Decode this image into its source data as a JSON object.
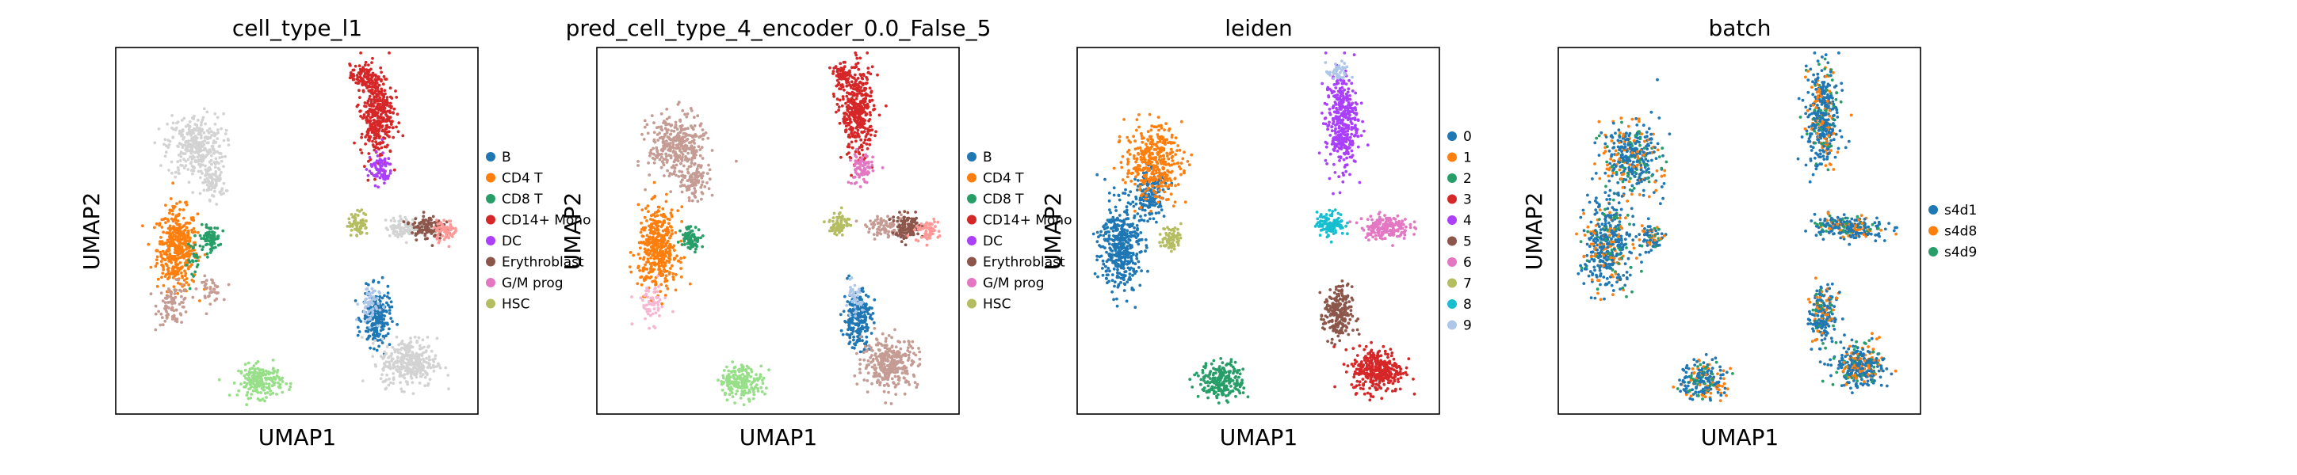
{
  "palettes": {
    "cell_type": {
      "B": "#1f77b4",
      "CD4 T": "#ff7f0e",
      "CD8 T": "#279e68",
      "CD14+ Mono": "#d62728",
      "DC": "#aa40fc",
      "Erythroblast": "#8c564b",
      "G/M prog": "#e377c2",
      "HSC": "#b5bd61",
      "unshown_a": "#d3d3d3",
      "unshown_b": "#c49c94",
      "unshown_c": "#98df8a",
      "unshown_d": "#aec7e8",
      "unshown_e": "#f7b6d2",
      "unshown_f": "#ff9896"
    },
    "leiden": [
      "#1f77b4",
      "#ff7f0e",
      "#279e68",
      "#d62728",
      "#aa40fc",
      "#8c564b",
      "#e377c2",
      "#b5bd61",
      "#17becf",
      "#aec7e8"
    ],
    "batch": {
      "s4d1": "#1f77b4",
      "s4d8": "#ff7f0e",
      "s4d9": "#279e68"
    }
  },
  "chart_data": [
    {
      "type": "scatter",
      "title": "cell_type_l1",
      "xlabel": "UMAP1",
      "ylabel": "UMAP2",
      "legend_placement": "right",
      "legend": [
        "B",
        "CD4 T",
        "CD8 T",
        "CD14+ Mono",
        "DC",
        "Erythroblast",
        "G/M prog",
        "HSC"
      ],
      "legend_colors": [
        "#1f77b4",
        "#ff7f0e",
        "#279e68",
        "#d62728",
        "#aa40fc",
        "#8c564b",
        "#e377c2",
        "#b5bd61"
      ],
      "clusters": [
        {
          "x": 0.17,
          "y": 0.45,
          "rx": 0.05,
          "ry": 0.1,
          "color": "#ff7f0e",
          "n": 420
        },
        {
          "x": 0.16,
          "y": 0.3,
          "rx": 0.04,
          "ry": 0.05,
          "color": "#c49c94",
          "n": 90
        },
        {
          "x": 0.26,
          "y": 0.34,
          "rx": 0.03,
          "ry": 0.03,
          "color": "#c49c94",
          "n": 40
        },
        {
          "x": 0.22,
          "y": 0.73,
          "rx": 0.07,
          "ry": 0.08,
          "color": "#d3d3d3",
          "n": 320
        },
        {
          "x": 0.27,
          "y": 0.63,
          "rx": 0.03,
          "ry": 0.04,
          "color": "#d3d3d3",
          "n": 80
        },
        {
          "x": 0.26,
          "y": 0.48,
          "rx": 0.025,
          "ry": 0.03,
          "color": "#279e68",
          "n": 80
        },
        {
          "x": 0.22,
          "y": 0.42,
          "rx": 0.02,
          "ry": 0.05,
          "color": "#279e68",
          "n": 25
        },
        {
          "x": 0.4,
          "y": 0.09,
          "rx": 0.055,
          "ry": 0.04,
          "color": "#98df8a",
          "n": 200
        },
        {
          "x": 0.72,
          "y": 0.26,
          "rx": 0.035,
          "ry": 0.07,
          "color": "#1f77b4",
          "n": 200
        },
        {
          "x": 0.7,
          "y": 0.3,
          "rx": 0.025,
          "ry": 0.05,
          "color": "#aec7e8",
          "n": 60
        },
        {
          "x": 0.81,
          "y": 0.14,
          "rx": 0.07,
          "ry": 0.06,
          "color": "#d3d3d3",
          "n": 320
        },
        {
          "x": 0.72,
          "y": 0.82,
          "rx": 0.04,
          "ry": 0.11,
          "color": "#d62728",
          "n": 380
        },
        {
          "x": 0.73,
          "y": 0.67,
          "rx": 0.03,
          "ry": 0.04,
          "color": "#aa40fc",
          "n": 80
        },
        {
          "x": 0.68,
          "y": 0.92,
          "rx": 0.03,
          "ry": 0.03,
          "color": "#d62728",
          "n": 80
        },
        {
          "x": 0.67,
          "y": 0.52,
          "rx": 0.025,
          "ry": 0.03,
          "color": "#b5bd61",
          "n": 70
        },
        {
          "x": 0.8,
          "y": 0.51,
          "rx": 0.05,
          "ry": 0.025,
          "color": "#d3d3d3",
          "n": 100
        },
        {
          "x": 0.86,
          "y": 0.51,
          "rx": 0.04,
          "ry": 0.03,
          "color": "#8c564b",
          "n": 110
        },
        {
          "x": 0.91,
          "y": 0.5,
          "rx": 0.03,
          "ry": 0.025,
          "color": "#ff9896",
          "n": 60
        }
      ]
    },
    {
      "type": "scatter",
      "title": "pred_cell_type_4_encoder_0.0_False_5",
      "xlabel": "UMAP1",
      "ylabel": "UMAP2",
      "legend_placement": "right",
      "legend": [
        "B",
        "CD4 T",
        "CD8 T",
        "CD14+ Mono",
        "DC",
        "Erythroblast",
        "G/M prog",
        "HSC"
      ],
      "legend_colors": [
        "#1f77b4",
        "#ff7f0e",
        "#279e68",
        "#d62728",
        "#aa40fc",
        "#8c564b",
        "#e377c2",
        "#b5bd61"
      ],
      "clusters": [
        {
          "x": 0.17,
          "y": 0.45,
          "rx": 0.05,
          "ry": 0.1,
          "color": "#ff7f0e",
          "n": 420
        },
        {
          "x": 0.15,
          "y": 0.3,
          "rx": 0.04,
          "ry": 0.05,
          "color": "#f7b6d2",
          "n": 60
        },
        {
          "x": 0.22,
          "y": 0.73,
          "rx": 0.07,
          "ry": 0.08,
          "color": "#c49c94",
          "n": 340
        },
        {
          "x": 0.27,
          "y": 0.63,
          "rx": 0.03,
          "ry": 0.04,
          "color": "#c49c94",
          "n": 90
        },
        {
          "x": 0.26,
          "y": 0.48,
          "rx": 0.025,
          "ry": 0.03,
          "color": "#279e68",
          "n": 80
        },
        {
          "x": 0.4,
          "y": 0.09,
          "rx": 0.055,
          "ry": 0.04,
          "color": "#98df8a",
          "n": 200
        },
        {
          "x": 0.72,
          "y": 0.26,
          "rx": 0.035,
          "ry": 0.07,
          "color": "#1f77b4",
          "n": 220
        },
        {
          "x": 0.71,
          "y": 0.31,
          "rx": 0.02,
          "ry": 0.04,
          "color": "#aec7e8",
          "n": 40
        },
        {
          "x": 0.81,
          "y": 0.14,
          "rx": 0.07,
          "ry": 0.06,
          "color": "#c49c94",
          "n": 320
        },
        {
          "x": 0.72,
          "y": 0.82,
          "rx": 0.04,
          "ry": 0.11,
          "color": "#d62728",
          "n": 380
        },
        {
          "x": 0.73,
          "y": 0.67,
          "rx": 0.03,
          "ry": 0.04,
          "color": "#e377c2",
          "n": 80
        },
        {
          "x": 0.68,
          "y": 0.92,
          "rx": 0.03,
          "ry": 0.03,
          "color": "#d62728",
          "n": 80
        },
        {
          "x": 0.67,
          "y": 0.52,
          "rx": 0.025,
          "ry": 0.03,
          "color": "#b5bd61",
          "n": 70
        },
        {
          "x": 0.8,
          "y": 0.51,
          "rx": 0.05,
          "ry": 0.025,
          "color": "#c49c94",
          "n": 90
        },
        {
          "x": 0.86,
          "y": 0.51,
          "rx": 0.04,
          "ry": 0.03,
          "color": "#8c564b",
          "n": 110
        },
        {
          "x": 0.91,
          "y": 0.5,
          "rx": 0.03,
          "ry": 0.025,
          "color": "#ff9896",
          "n": 60
        }
      ]
    },
    {
      "type": "scatter",
      "title": "leiden",
      "xlabel": "UMAP1",
      "ylabel": "UMAP2",
      "legend_placement": "right",
      "legend": [
        "0",
        "1",
        "2",
        "3",
        "4",
        "5",
        "6",
        "7",
        "8",
        "9"
      ],
      "legend_colors": [
        "#1f77b4",
        "#ff7f0e",
        "#279e68",
        "#d62728",
        "#aa40fc",
        "#8c564b",
        "#e377c2",
        "#b5bd61",
        "#17becf",
        "#aec7e8"
      ],
      "clusters": [
        {
          "x": 0.12,
          "y": 0.46,
          "rx": 0.05,
          "ry": 0.11,
          "color": "#1f77b4",
          "n": 420
        },
        {
          "x": 0.2,
          "y": 0.6,
          "rx": 0.04,
          "ry": 0.06,
          "color": "#1f77b4",
          "n": 160
        },
        {
          "x": 0.21,
          "y": 0.69,
          "rx": 0.07,
          "ry": 0.09,
          "color": "#ff7f0e",
          "n": 360
        },
        {
          "x": 0.26,
          "y": 0.48,
          "rx": 0.025,
          "ry": 0.03,
          "color": "#b5bd61",
          "n": 80
        },
        {
          "x": 0.4,
          "y": 0.09,
          "rx": 0.055,
          "ry": 0.045,
          "color": "#279e68",
          "n": 230
        },
        {
          "x": 0.72,
          "y": 0.27,
          "rx": 0.035,
          "ry": 0.07,
          "color": "#8c564b",
          "n": 220
        },
        {
          "x": 0.83,
          "y": 0.12,
          "rx": 0.065,
          "ry": 0.055,
          "color": "#d62728",
          "n": 330
        },
        {
          "x": 0.73,
          "y": 0.8,
          "rx": 0.04,
          "ry": 0.12,
          "color": "#aa40fc",
          "n": 380
        },
        {
          "x": 0.72,
          "y": 0.93,
          "rx": 0.03,
          "ry": 0.025,
          "color": "#aec7e8",
          "n": 40
        },
        {
          "x": 0.7,
          "y": 0.52,
          "rx": 0.035,
          "ry": 0.03,
          "color": "#17becf",
          "n": 110
        },
        {
          "x": 0.85,
          "y": 0.51,
          "rx": 0.06,
          "ry": 0.03,
          "color": "#e377c2",
          "n": 170
        }
      ]
    },
    {
      "type": "scatter",
      "title": "batch",
      "xlabel": "UMAP1",
      "ylabel": "UMAP2",
      "legend_placement": "right",
      "legend": [
        "s4d1",
        "s4d8",
        "s4d9"
      ],
      "legend_colors": [
        "#1f77b4",
        "#ff7f0e",
        "#279e68"
      ],
      "mixed": true,
      "mix_weights": [
        0.62,
        0.24,
        0.14
      ],
      "clusters": [
        {
          "x": 0.14,
          "y": 0.46,
          "rx": 0.06,
          "ry": 0.11,
          "n": 440
        },
        {
          "x": 0.2,
          "y": 0.7,
          "rx": 0.07,
          "ry": 0.09,
          "n": 380
        },
        {
          "x": 0.26,
          "y": 0.48,
          "rx": 0.025,
          "ry": 0.03,
          "n": 70
        },
        {
          "x": 0.4,
          "y": 0.09,
          "rx": 0.055,
          "ry": 0.045,
          "n": 220
        },
        {
          "x": 0.73,
          "y": 0.27,
          "rx": 0.035,
          "ry": 0.07,
          "n": 220
        },
        {
          "x": 0.83,
          "y": 0.13,
          "rx": 0.065,
          "ry": 0.055,
          "n": 320
        },
        {
          "x": 0.73,
          "y": 0.81,
          "rx": 0.04,
          "ry": 0.12,
          "n": 400
        },
        {
          "x": 0.8,
          "y": 0.51,
          "rx": 0.09,
          "ry": 0.03,
          "n": 240
        }
      ]
    }
  ]
}
